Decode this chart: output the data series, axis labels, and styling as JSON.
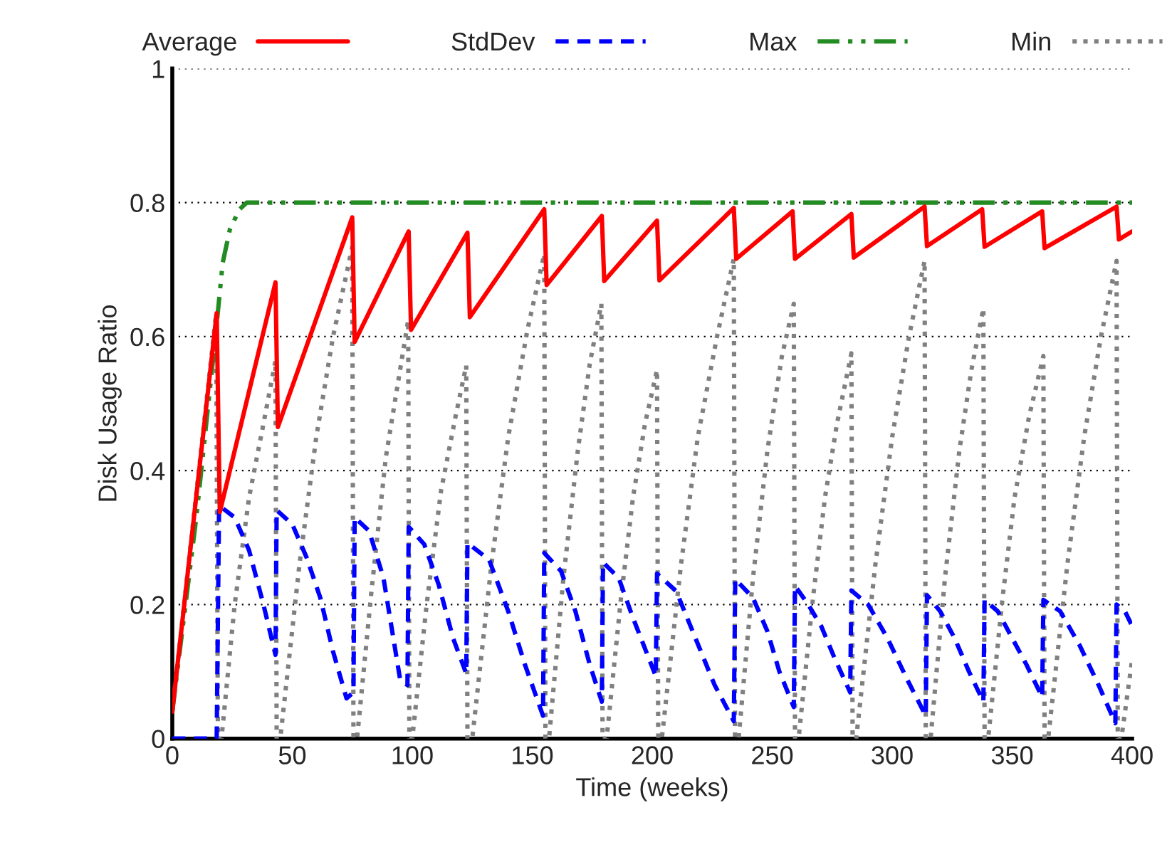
{
  "chart_data": {
    "type": "line",
    "xlabel": "Time (weeks)",
    "ylabel": "Disk Usage Ratio",
    "xlim": [
      0,
      400
    ],
    "xticks": [
      0,
      50,
      100,
      150,
      200,
      250,
      300,
      350,
      400
    ],
    "ylim": [
      0,
      1
    ],
    "yticks": [
      0,
      0.2,
      0.4,
      0.6,
      0.8,
      1
    ],
    "grid": "y",
    "legend": "top",
    "marker": "none",
    "series": [
      {
        "name": "Average",
        "color": "#ff0000",
        "line_style": "solid",
        "x": [
          0,
          18.5,
          19.8,
          43,
          44,
          75,
          76,
          98.5,
          99.5,
          123,
          124,
          155,
          156,
          179,
          180,
          202,
          203,
          234,
          235,
          258.5,
          259.5,
          283,
          284,
          313.5,
          314.5,
          337.5,
          338.5,
          362.5,
          363.5,
          393.5,
          394.5,
          400
        ],
        "values": [
          0.04,
          0.635,
          0.338,
          0.681,
          0.465,
          0.778,
          0.592,
          0.757,
          0.61,
          0.755,
          0.629,
          0.79,
          0.677,
          0.78,
          0.683,
          0.773,
          0.684,
          0.792,
          0.716,
          0.787,
          0.716,
          0.783,
          0.718,
          0.794,
          0.735,
          0.79,
          0.734,
          0.787,
          0.732,
          0.794,
          0.745,
          0.757
        ]
      },
      {
        "name": "StdDev",
        "color": "#0000ff",
        "line_style": "dashed",
        "x": [
          0,
          18.5,
          19.5,
          26,
          32,
          38,
          43,
          43.5,
          50,
          56,
          61.7,
          67,
          72.6,
          75.5,
          76,
          82,
          88,
          95,
          98,
          98.5,
          105,
          111,
          117,
          122.5,
          123,
          132,
          140,
          147,
          154.5,
          155,
          162,
          168,
          174,
          179,
          179.5,
          186,
          192,
          201.5,
          202,
          210,
          218,
          226,
          234,
          234.6,
          242,
          248,
          253,
          259,
          259.5,
          265,
          270.4,
          276,
          282.5,
          283,
          290,
          298,
          306,
          314,
          314.5,
          320,
          326,
          332,
          338,
          338.5,
          344,
          350,
          356,
          362.5,
          363,
          370,
          378,
          386,
          393,
          393.5,
          397,
          400
        ],
        "values": [
          0,
          0,
          0.348,
          0.33,
          0.281,
          0.2,
          0.125,
          0.341,
          0.32,
          0.27,
          0.21,
          0.13,
          0.06,
          0.069,
          0.33,
          0.31,
          0.24,
          0.087,
          0.08,
          0.316,
          0.29,
          0.23,
          0.15,
          0.097,
          0.292,
          0.267,
          0.19,
          0.11,
          0.034,
          0.277,
          0.25,
          0.19,
          0.11,
          0.055,
          0.263,
          0.24,
          0.18,
          0.093,
          0.246,
          0.22,
          0.15,
          0.08,
          0.026,
          0.238,
          0.21,
          0.16,
          0.1,
          0.047,
          0.228,
          0.2,
          0.168,
          0.12,
          0.069,
          0.221,
          0.2,
          0.15,
          0.09,
          0.034,
          0.214,
          0.19,
          0.15,
          0.1,
          0.055,
          0.207,
          0.19,
          0.15,
          0.11,
          0.062,
          0.207,
          0.19,
          0.14,
          0.08,
          0.023,
          0.2,
          0.19,
          0.168
        ]
      },
      {
        "name": "Max",
        "color": "#228b22",
        "line_style": "dashdot",
        "x": [
          0,
          10,
          18,
          21,
          24,
          28,
          31,
          35,
          400
        ],
        "values": [
          0.04,
          0.33,
          0.6,
          0.71,
          0.76,
          0.79,
          0.8,
          0.8,
          0.8
        ]
      },
      {
        "name": "Min",
        "color": "#808080",
        "line_style": "dotted",
        "x": [
          0,
          18.3,
          19,
          20.5,
          26,
          32,
          38,
          43,
          43.5,
          45,
          53,
          60,
          67,
          75,
          75.5,
          77,
          83,
          89,
          94,
          98.3,
          98.8,
          100,
          106,
          112,
          118,
          122.5,
          123,
          125,
          133,
          140,
          148,
          155,
          155.5,
          157,
          163,
          169,
          174,
          178.8,
          179.3,
          181,
          187,
          192,
          197,
          202,
          202.5,
          204,
          212,
          219,
          227,
          234,
          234.5,
          236,
          242,
          248,
          254,
          259,
          259.5,
          261,
          267,
          272,
          277,
          283,
          283.5,
          285,
          293,
          300,
          307,
          313.5,
          314,
          316,
          322,
          328,
          333,
          338,
          338.5,
          340,
          346,
          351,
          357,
          363,
          363.5,
          365,
          373,
          380,
          387,
          393.5,
          394,
          395.5,
          400
        ],
        "values": [
          0.04,
          0.635,
          0,
          0,
          0.2,
          0.36,
          0.47,
          0.564,
          0,
          0,
          0.26,
          0.45,
          0.6,
          0.734,
          0,
          0,
          0.22,
          0.42,
          0.53,
          0.624,
          0,
          0,
          0.2,
          0.37,
          0.48,
          0.557,
          0,
          0,
          0.26,
          0.45,
          0.61,
          0.723,
          0,
          0,
          0.24,
          0.43,
          0.56,
          0.649,
          0,
          0,
          0.21,
          0.36,
          0.47,
          0.55,
          0,
          0,
          0.26,
          0.45,
          0.6,
          0.716,
          0,
          0,
          0.24,
          0.43,
          0.57,
          0.649,
          0,
          0,
          0.21,
          0.36,
          0.47,
          0.575,
          0,
          0,
          0.26,
          0.45,
          0.6,
          0.713,
          0,
          0,
          0.24,
          0.43,
          0.55,
          0.642,
          0,
          0,
          0.21,
          0.36,
          0.48,
          0.571,
          0,
          0,
          0.26,
          0.45,
          0.6,
          0.713,
          0,
          0,
          0.118
        ]
      }
    ]
  }
}
